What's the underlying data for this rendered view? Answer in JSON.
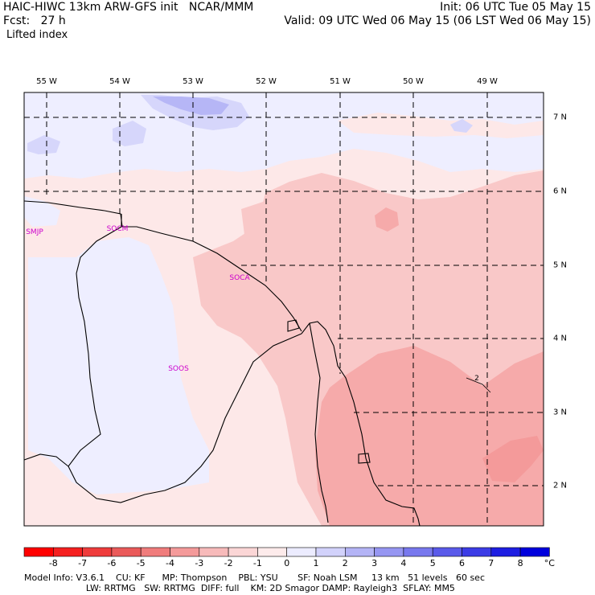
{
  "header": {
    "model_line": "HAIC-HIWC 13km ARW-GFS init   NCAR/MMM",
    "fcst_line": "Fcst:   27 h",
    "field_name": "Lifted index",
    "init_line": "Init: 06 UTC Tue 05 May 15",
    "valid_line": "Valid: 09 UTC Wed 06 May 15 (06 LST Wed 06 May 15)"
  },
  "map": {
    "lon_labels": [
      "55 W",
      "54 W",
      "53 W",
      "52 W",
      "51 W",
      "50 W",
      "49 W"
    ],
    "lat_labels": [
      "7 N",
      "6 N",
      "5 N",
      "4 N",
      "3 N",
      "2 N"
    ],
    "stations": [
      "SMJP",
      "SOCM",
      "SOCA",
      "SOOS"
    ],
    "contour_label": "2",
    "colors": {
      "frame": "#000000",
      "pale_pink": "#fde8e8",
      "light_pink": "#f9c8c8",
      "pink": "#f6aaaa",
      "lavender": "#eeeeff",
      "light_blue": "#d6d6fb",
      "blue": "#b6b6f6"
    }
  },
  "colorbar": {
    "ticks": [
      "-8",
      "-7",
      "-6",
      "-5",
      "-4",
      "-3",
      "-2",
      "-1",
      "0",
      "1",
      "2",
      "3",
      "4",
      "5",
      "6",
      "7",
      "8",
      "°C"
    ],
    "colors": [
      "#ff0000",
      "#f52020",
      "#ef3c3c",
      "#ea5a5a",
      "#f07c7c",
      "#f49a9a",
      "#f7baba",
      "#fbd6d6",
      "#fdebeb",
      "#ececff",
      "#d2d2fb",
      "#b4b4f6",
      "#9696f2",
      "#7878ee",
      "#5a5aea",
      "#3c3ce6",
      "#1e1ee2",
      "#0000dd"
    ]
  },
  "footer": {
    "line1": "Model Info: V3.6.1    CU: KF      MP: Thompson    PBL: YSU       SF: Noah LSM     13 km   51 levels   60 sec",
    "line2": "                      LW: RRTMG   SW: RRTMG  DIFF: full    KM: 2D Smagor DAMP: Rayleigh3  SFLAY: MM5"
  }
}
